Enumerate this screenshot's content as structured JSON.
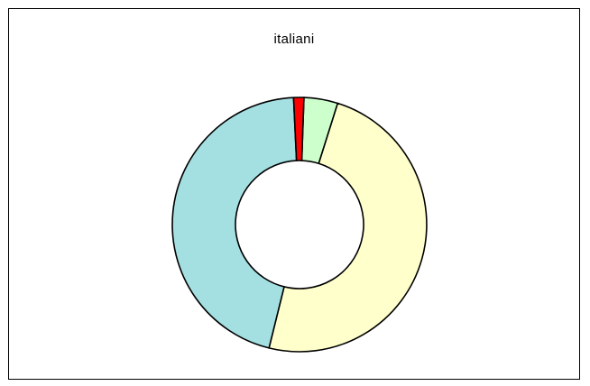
{
  "chart_data": {
    "type": "pie",
    "variant": "donut",
    "title": "italiani",
    "categories": [
      "",
      "",
      "",
      ""
    ],
    "values": [
      4.3,
      49.0,
      45.4,
      1.3
    ],
    "colors": [
      "#ccffcc",
      "#ffffcc",
      "#a4dfe2",
      "#ff0000"
    ],
    "start_angle_deg": 2,
    "direction": "clockwise",
    "legend": "none"
  }
}
